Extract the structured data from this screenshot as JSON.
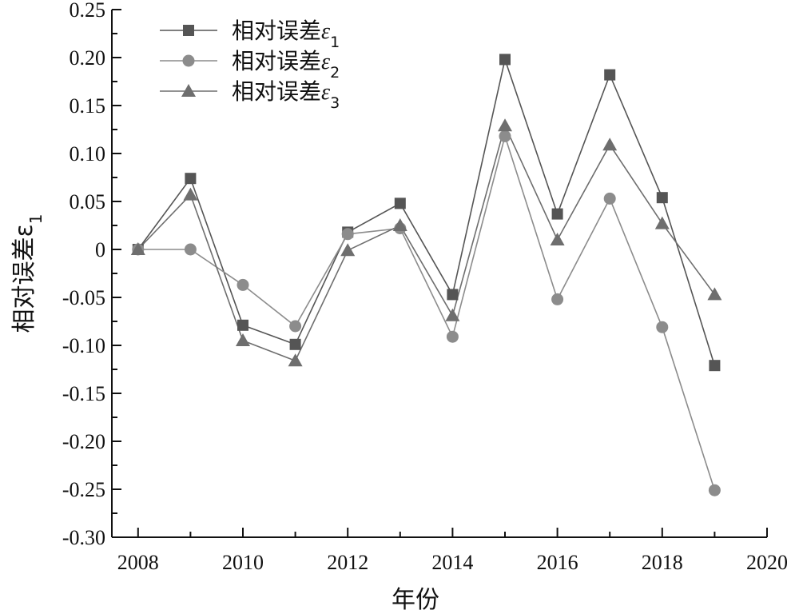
{
  "chart_data": {
    "type": "line",
    "xlabel": "年份",
    "ylabel": "相对误差ε1",
    "xlim": [
      2007.5,
      2020
    ],
    "ylim": [
      -0.3,
      0.25
    ],
    "x_ticks": [
      2008,
      2010,
      2012,
      2014,
      2016,
      2018,
      2020
    ],
    "y_ticks": [
      0.25,
      0.2,
      0.15,
      0.1,
      0.05,
      0,
      -0.05,
      -0.1,
      -0.15,
      -0.2,
      -0.25,
      -0.3
    ],
    "y_tick_labels": [
      "0.25",
      "0.20",
      "0.15",
      "0.10",
      "0.05",
      "0",
      "-0.05",
      "-0.10",
      "-0.15",
      "-0.20",
      "-0.25",
      "-0.30"
    ],
    "legend_position": "top-left",
    "x": [
      2008,
      2009,
      2010,
      2011,
      2012,
      2013,
      2014,
      2015,
      2016,
      2017,
      2018,
      2019
    ],
    "series": [
      {
        "name": "相对误差ε1",
        "marker": "square",
        "color": "#555555",
        "values": [
          0.0,
          0.074,
          -0.079,
          -0.099,
          0.018,
          0.048,
          -0.047,
          0.198,
          0.037,
          0.182,
          0.054,
          -0.121
        ]
      },
      {
        "name": "相对误差ε2",
        "marker": "circle",
        "color": "#8c8c8c",
        "values": [
          0.0,
          0.0,
          -0.037,
          -0.08,
          0.016,
          0.022,
          -0.091,
          0.118,
          -0.052,
          0.053,
          -0.081,
          -0.251
        ]
      },
      {
        "name": "相对误差ε3",
        "marker": "triangle",
        "color": "#6e6e6e",
        "values": [
          0.0,
          0.057,
          -0.095,
          -0.116,
          -0.001,
          0.025,
          -0.069,
          0.129,
          0.01,
          0.109,
          0.027,
          -0.047
        ]
      }
    ]
  }
}
